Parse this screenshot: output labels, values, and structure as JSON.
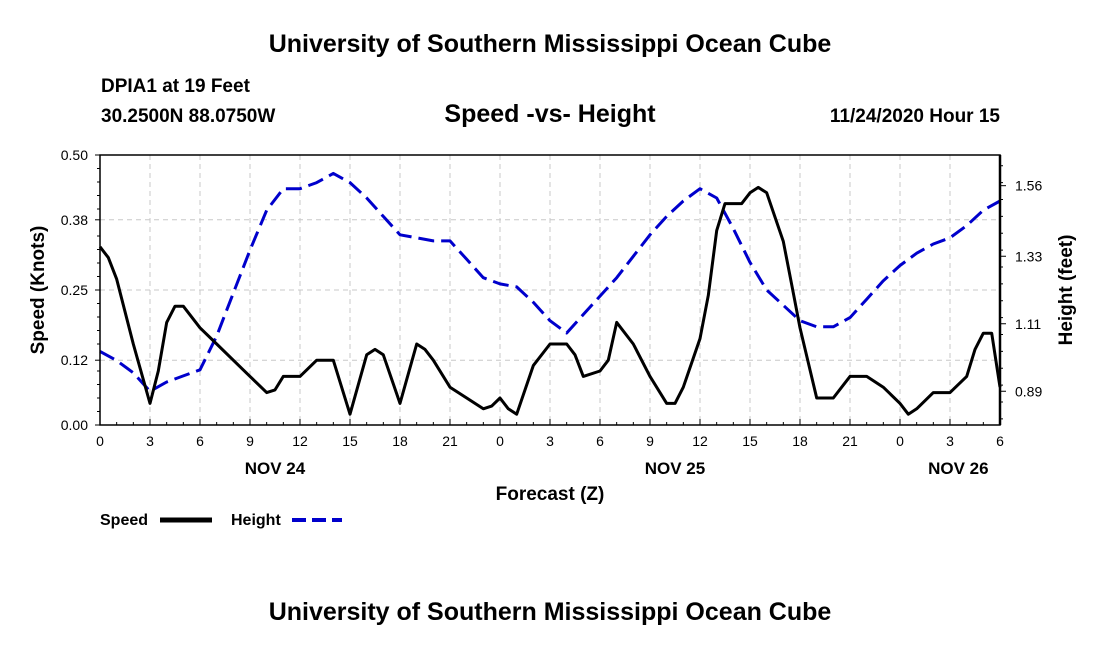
{
  "header": {
    "title": "University of Southern Mississippi Ocean Cube",
    "station": "DPIA1 at 19 Feet",
    "coordinates": "30.2500N 88.0750W",
    "date": "11/24/2020 Hour 15"
  },
  "footer": {
    "title": "University of Southern Mississippi Ocean Cube"
  },
  "chart_data": {
    "type": "line",
    "title": "Speed -vs- Height",
    "xlabel": "Forecast (Z)",
    "ylabel_left": "Speed (Knots)",
    "ylabel_right": "Height (feet)",
    "x_unit": "hours from 00Z Nov 24",
    "xlim": [
      0,
      54
    ],
    "ylim_left": [
      0,
      0.5
    ],
    "ylim_right": [
      0.78,
      1.66
    ],
    "x_tick_labels": [
      "0",
      "3",
      "6",
      "9",
      "12",
      "15",
      "18",
      "21",
      "0",
      "3",
      "6",
      "9",
      "12",
      "15",
      "18",
      "21",
      "0",
      "3",
      "6"
    ],
    "y_left_ticks": [
      "0.00",
      "0.12",
      "0.25",
      "0.38",
      "0.50"
    ],
    "y_right_ticks": [
      "0.89",
      "1.11",
      "1.33",
      "1.56"
    ],
    "day_labels": [
      {
        "label": "NOV 24",
        "hour": 10.5
      },
      {
        "label": "NOV 25",
        "hour": 34.5
      },
      {
        "label": "NOV 26",
        "hour": 51.5
      }
    ],
    "grid": true,
    "legend": "bottom-left",
    "series": [
      {
        "name": "Speed",
        "color": "#000000",
        "style": "solid",
        "axis": "left",
        "x": [
          0,
          0.5,
          1,
          2,
          3,
          3.5,
          4,
          4.5,
          5,
          6,
          7,
          8,
          9,
          10,
          10.5,
          11,
          12,
          13,
          13.5,
          14,
          15,
          16,
          16.5,
          17,
          18,
          19,
          19.5,
          20,
          21,
          22,
          23,
          23.5,
          24,
          24.5,
          25,
          26,
          27,
          28,
          28.5,
          29,
          30,
          30.5,
          31,
          32,
          33,
          34,
          34.5,
          35,
          36,
          36.5,
          37,
          37.5,
          38,
          38.5,
          39,
          39.5,
          40,
          41,
          41.5,
          42,
          43,
          44,
          45,
          45.5,
          46,
          47,
          48,
          48.5,
          49,
          50,
          51,
          52,
          52.5,
          53,
          53.5,
          54
        ],
        "y": [
          0.33,
          0.31,
          0.27,
          0.15,
          0.04,
          0.1,
          0.19,
          0.22,
          0.22,
          0.18,
          0.15,
          0.12,
          0.09,
          0.06,
          0.065,
          0.09,
          0.09,
          0.12,
          0.12,
          0.12,
          0.02,
          0.13,
          0.14,
          0.13,
          0.04,
          0.15,
          0.14,
          0.12,
          0.07,
          0.05,
          0.03,
          0.035,
          0.05,
          0.03,
          0.02,
          0.11,
          0.15,
          0.15,
          0.13,
          0.09,
          0.1,
          0.12,
          0.19,
          0.15,
          0.09,
          0.04,
          0.04,
          0.07,
          0.16,
          0.24,
          0.36,
          0.41,
          0.41,
          0.41,
          0.43,
          0.44,
          0.43,
          0.34,
          0.26,
          0.18,
          0.05,
          0.05,
          0.09,
          0.09,
          0.09,
          0.07,
          0.04,
          0.02,
          0.03,
          0.06,
          0.06,
          0.09,
          0.14,
          0.17,
          0.17,
          0.07
        ]
      },
      {
        "name": "Height",
        "color": "#0000cc",
        "style": "dashed",
        "axis": "right",
        "x": [
          0,
          1,
          2,
          3,
          4,
          5,
          6,
          7,
          8,
          9,
          10,
          11,
          11.5,
          12,
          13,
          14,
          15,
          16,
          17,
          18,
          19,
          20,
          21,
          22,
          23,
          24,
          25,
          26,
          27,
          28,
          29,
          30,
          31,
          32,
          33,
          34,
          35,
          36,
          37,
          38,
          39,
          40,
          41,
          42,
          43,
          44,
          45,
          46,
          47,
          48,
          49,
          50,
          51,
          52,
          53,
          54
        ],
        "y": [
          1.02,
          0.99,
          0.95,
          0.89,
          0.92,
          0.94,
          0.96,
          1.07,
          1.21,
          1.35,
          1.48,
          1.55,
          1.55,
          1.55,
          1.57,
          1.6,
          1.57,
          1.52,
          1.46,
          1.4,
          1.39,
          1.38,
          1.38,
          1.32,
          1.26,
          1.24,
          1.23,
          1.18,
          1.12,
          1.08,
          1.14,
          1.2,
          1.26,
          1.33,
          1.4,
          1.46,
          1.51,
          1.55,
          1.52,
          1.42,
          1.31,
          1.22,
          1.17,
          1.12,
          1.1,
          1.1,
          1.13,
          1.19,
          1.25,
          1.3,
          1.34,
          1.37,
          1.39,
          1.43,
          1.48,
          1.51
        ]
      }
    ]
  }
}
